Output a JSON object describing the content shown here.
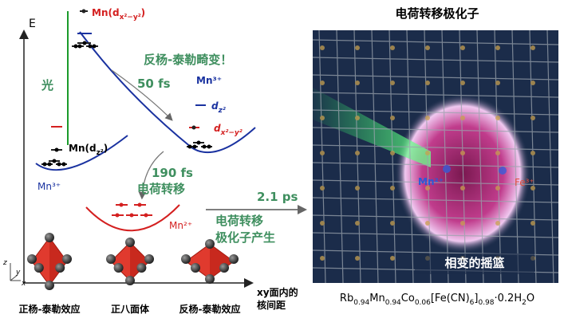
{
  "axis_label": "E",
  "light": "光",
  "levels": {
    "mn_dx2y2": [
      "Mn(d",
      "x²−y²",
      ")"
    ],
    "mn_dz2": [
      "Mn(d",
      "z²",
      ")"
    ],
    "dz2": [
      "d",
      "z²"
    ],
    "dx2y2": [
      "d",
      "x²−y²"
    ]
  },
  "ions": {
    "mn3_left": "Mn³⁺",
    "mn3_right": "Mn³⁺",
    "mn2": "Mn²⁺"
  },
  "distortion": "反杨-泰勒畸变！",
  "steps": [
    {
      "time": "50 fs"
    },
    {
      "time": "190 fs",
      "label": "电荷转移"
    },
    {
      "time": "2.1 ps",
      "label": [
        "电荷转移",
        "极化子产生"
      ]
    }
  ],
  "x_axis_label": [
    "xy面内的",
    "核间距"
  ],
  "axes": [
    "z",
    "y",
    "x"
  ],
  "octahedra": [
    "正杨-泰勒效应",
    "正八面体",
    "反杨-泰勒效应"
  ],
  "image": {
    "title": "电荷转移极化子",
    "ion_left": "Mn²⁺",
    "ion_right": "Fe³⁺",
    "caption": "相变的摇篮",
    "formula": [
      "Rb",
      "0.94",
      "Mn",
      "0.94",
      "Co",
      "0.06",
      "[Fe(CN)",
      "6",
      "]",
      "0.98",
      "·0.2H",
      "2",
      "O"
    ]
  }
}
